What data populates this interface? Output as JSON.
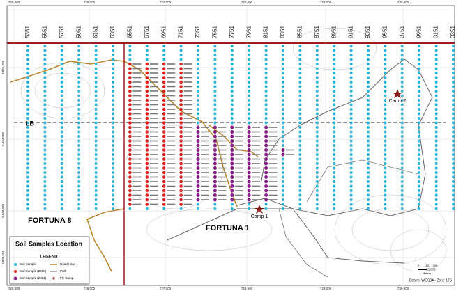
{
  "map": {
    "coords_top": [
      "725,000",
      "726,000",
      "727,000",
      "728,000",
      "729,000",
      "730,000"
    ],
    "coords_bottom": [
      "725,000",
      "726,000",
      "727,000",
      "728,000",
      "729,000",
      "730,000"
    ],
    "coords_left": [
      "9,835,000",
      "9,834,000",
      "9,833,000",
      "9,832,000"
    ],
    "lines": [
      "5351",
      "5551",
      "5751",
      "5951",
      "6151",
      "6351",
      "6551",
      "6751",
      "6951",
      "7151",
      "7351",
      "7551",
      "7751",
      "7951",
      "8151",
      "8351",
      "8551",
      "8751",
      "8951",
      "9151",
      "9351",
      "9551",
      "9751",
      "9951",
      "0151",
      "0351"
    ],
    "baseline": "LB",
    "concessions": [
      "FORTUNA 8",
      "FORTUNA 1"
    ],
    "camps": [
      "Camp 1",
      "Camp 2"
    ],
    "legend": {
      "title": "Soil Samples Location",
      "heading": "LEGEND",
      "items": [
        "Soil Sample",
        "Soil Sample (2020)",
        "Soil Sample (2021)",
        "Road / trail",
        "Path",
        "Fly Camp"
      ]
    },
    "scale": {
      "ticks": [
        "0",
        "100",
        "200"
      ],
      "unit": "Meters"
    },
    "datum": "Datum: WGS84 - Zone 17S"
  }
}
